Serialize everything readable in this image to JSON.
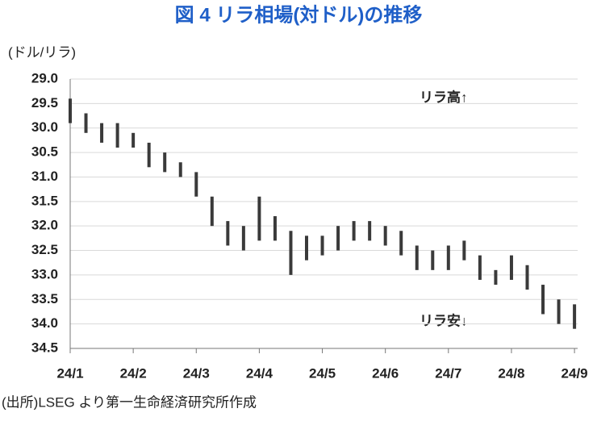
{
  "chart_data": {
    "type": "hilo",
    "title": "図 4  リラ相場(対ドル)の推移",
    "y_label": "(ドル/リラ)",
    "source": "(出所)LSEG より第一生命経済研究所作成",
    "annotations": [
      "リラ高↑",
      "リラ安↓"
    ],
    "color": "#3a3a3a",
    "grid": true,
    "y_inverted": true,
    "ylim": [
      29,
      34.5
    ],
    "yticks": [
      {
        "value": 29,
        "label": "29.0"
      },
      {
        "value": 29.5,
        "label": "29.5"
      },
      {
        "value": 30,
        "label": "30.0"
      },
      {
        "value": 30.5,
        "label": "30.5"
      },
      {
        "value": 31,
        "label": "31.0"
      },
      {
        "value": 31.5,
        "label": "31.5"
      },
      {
        "value": 32,
        "label": "32.0"
      },
      {
        "value": 32.5,
        "label": "32.5"
      },
      {
        "value": 33,
        "label": "33.0"
      },
      {
        "value": 33.5,
        "label": "33.5"
      },
      {
        "value": 34,
        "label": "34.0"
      },
      {
        "value": 34.5,
        "label": "34.5"
      }
    ],
    "xlim": [
      0,
      8.05
    ],
    "xticks": [
      {
        "value": 0,
        "label": "24/1"
      },
      {
        "value": 1,
        "label": "24/2"
      },
      {
        "value": 2,
        "label": "24/3"
      },
      {
        "value": 3,
        "label": "24/4"
      },
      {
        "value": 4,
        "label": "24/5"
      },
      {
        "value": 5,
        "label": "24/6"
      },
      {
        "value": 6,
        "label": "24/7"
      },
      {
        "value": 7,
        "label": "24/8"
      },
      {
        "value": 8,
        "label": "24/9"
      }
    ],
    "x": [
      0,
      0.25,
      0.5,
      0.75,
      1,
      1.25,
      1.5,
      1.75,
      2,
      2.25,
      2.5,
      2.75,
      3,
      3.25,
      3.5,
      3.75,
      4,
      4.25,
      4.5,
      4.75,
      5,
      5.25,
      5.5,
      5.75,
      6,
      6.25,
      6.5,
      6.75,
      7,
      7.25,
      7.5,
      7.75,
      8
    ],
    "low": [
      29.4,
      29.7,
      29.9,
      29.9,
      30.1,
      30.3,
      30.5,
      30.7,
      30.9,
      31.4,
      31.9,
      32.0,
      31.4,
      31.8,
      32.1,
      32.2,
      32.2,
      32.0,
      31.9,
      31.9,
      32.0,
      32.1,
      32.4,
      32.5,
      32.4,
      32.3,
      32.6,
      32.9,
      32.6,
      32.8,
      33.2,
      33.5,
      33.6
    ],
    "high": [
      29.9,
      30.1,
      30.3,
      30.4,
      30.4,
      30.8,
      30.9,
      31.0,
      31.4,
      32.0,
      32.4,
      32.5,
      32.3,
      32.3,
      33.0,
      32.7,
      32.6,
      32.5,
      32.3,
      32.3,
      32.4,
      32.6,
      32.9,
      32.9,
      32.9,
      32.7,
      33.1,
      33.2,
      33.1,
      33.3,
      33.8,
      34.0,
      34.1
    ]
  }
}
